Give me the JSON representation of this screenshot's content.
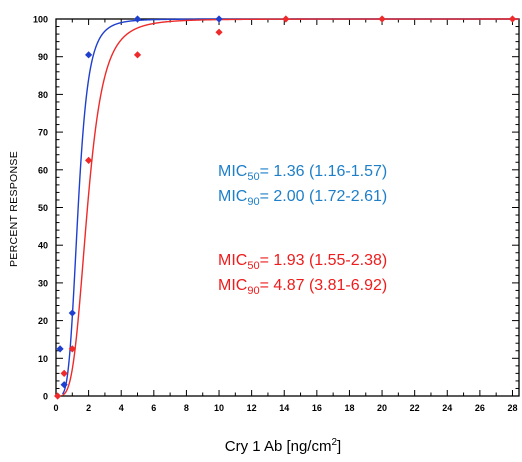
{
  "chart_data": {
    "type": "scatter",
    "title": "",
    "ylabel": "PERCENT RESPONSE",
    "xlabel_main": "Cry 1 Ab [ng/cm",
    "xlabel_sup": "2",
    "xlabel_end": "]",
    "xlim": [
      0,
      28.4
    ],
    "ylim": [
      0,
      100
    ],
    "x_ticks": [
      0,
      2,
      4,
      6,
      8,
      10,
      12,
      14,
      16,
      18,
      20,
      22,
      24,
      26,
      28
    ],
    "y_ticks": [
      0,
      10,
      20,
      30,
      40,
      50,
      60,
      70,
      80,
      90,
      100
    ],
    "grid": false,
    "colors": {
      "blue": "#1f3fcf",
      "red": "#ee2a2a",
      "annot_blue": "#1e7fc8",
      "annot_red": "#ee1c1c"
    },
    "series": [
      {
        "color_key": "blue",
        "points": [
          {
            "x": 0.25,
            "y": 12.5
          },
          {
            "x": 0.5,
            "y": 3
          },
          {
            "x": 1,
            "y": 22
          },
          {
            "x": 2,
            "y": 90.5
          },
          {
            "x": 5,
            "y": 100
          },
          {
            "x": 10,
            "y": 100
          }
        ],
        "fit": {
          "ec50": 1.36,
          "hill": 4.3
        }
      },
      {
        "color_key": "red",
        "points": [
          {
            "x": 0.1,
            "y": 0
          },
          {
            "x": 0.5,
            "y": 6
          },
          {
            "x": 1,
            "y": 12.5
          },
          {
            "x": 2,
            "y": 62.5
          },
          {
            "x": 5,
            "y": 90.5
          },
          {
            "x": 10,
            "y": 96.5
          },
          {
            "x": 14.1,
            "y": 100
          },
          {
            "x": 20,
            "y": 100
          },
          {
            "x": 28,
            "y": 100
          }
        ],
        "fit": {
          "ec50": 1.93,
          "hill": 3.9
        }
      }
    ],
    "annotations": [
      {
        "color_key": "annot_blue",
        "prefix": "MIC",
        "sub": "50",
        "text": "= 1.36 (1.16-1.57)"
      },
      {
        "color_key": "annot_blue",
        "prefix": "MIC",
        "sub": "90",
        "text": "= 2.00 (1.72-2.61)"
      },
      {
        "color_key": "annot_red",
        "prefix": "MIC",
        "sub": "50",
        "text": "= 1.93 (1.55-2.38)"
      },
      {
        "color_key": "annot_red",
        "prefix": "MIC",
        "sub": "90",
        "text": "= 4.87 (3.81-6.92)"
      }
    ]
  }
}
